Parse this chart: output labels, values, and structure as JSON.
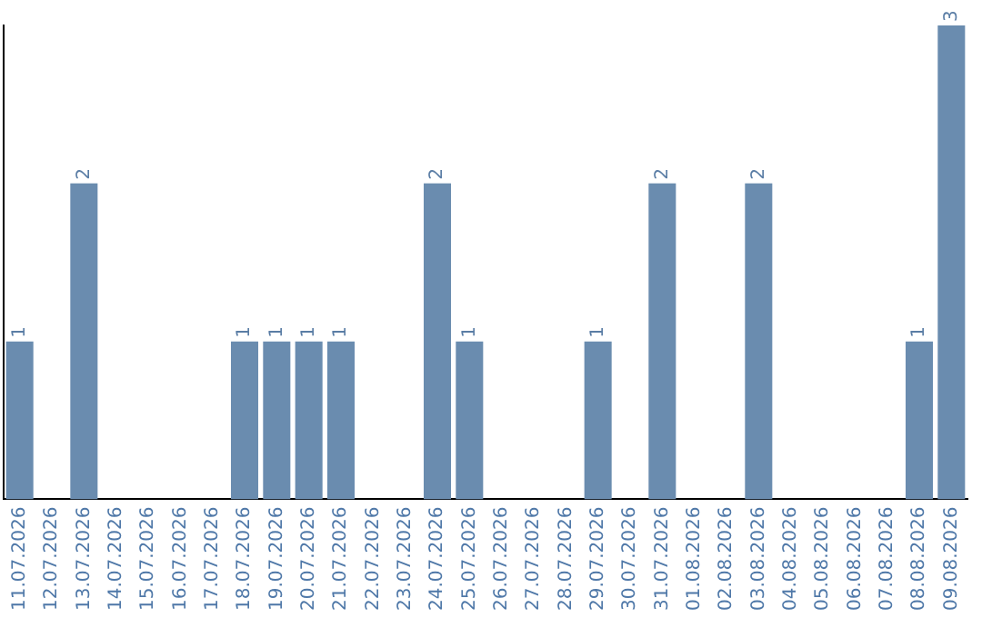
{
  "chart_data": {
    "type": "bar",
    "categories": [
      "11.07.2026",
      "12.07.2026",
      "13.07.2026",
      "14.07.2026",
      "15.07.2026",
      "16.07.2026",
      "17.07.2026",
      "18.07.2026",
      "19.07.2026",
      "20.07.2026",
      "21.07.2026",
      "22.07.2026",
      "23.07.2026",
      "24.07.2026",
      "25.07.2026",
      "26.07.2026",
      "27.07.2026",
      "28.07.2026",
      "29.07.2026",
      "30.07.2026",
      "31.07.2026",
      "01.08.2026",
      "02.08.2026",
      "03.08.2026",
      "04.08.2026",
      "05.08.2026",
      "06.08.2026",
      "07.08.2026",
      "08.08.2026",
      "09.08.2026"
    ],
    "values": [
      1,
      0,
      2,
      0,
      0,
      0,
      0,
      1,
      1,
      1,
      1,
      0,
      0,
      2,
      1,
      0,
      0,
      0,
      1,
      0,
      2,
      0,
      0,
      2,
      0,
      0,
      0,
      0,
      1,
      3
    ],
    "value_labels": [
      "1",
      null,
      "2",
      null,
      null,
      null,
      null,
      "1",
      "1",
      "1",
      "1",
      null,
      null,
      "2",
      "1",
      null,
      null,
      null,
      "1",
      null,
      "2",
      null,
      null,
      "2",
      null,
      null,
      null,
      null,
      "1",
      "3"
    ],
    "color": "#6a8caf",
    "grid": false,
    "legend": false,
    "tick_labels": "x"
  }
}
